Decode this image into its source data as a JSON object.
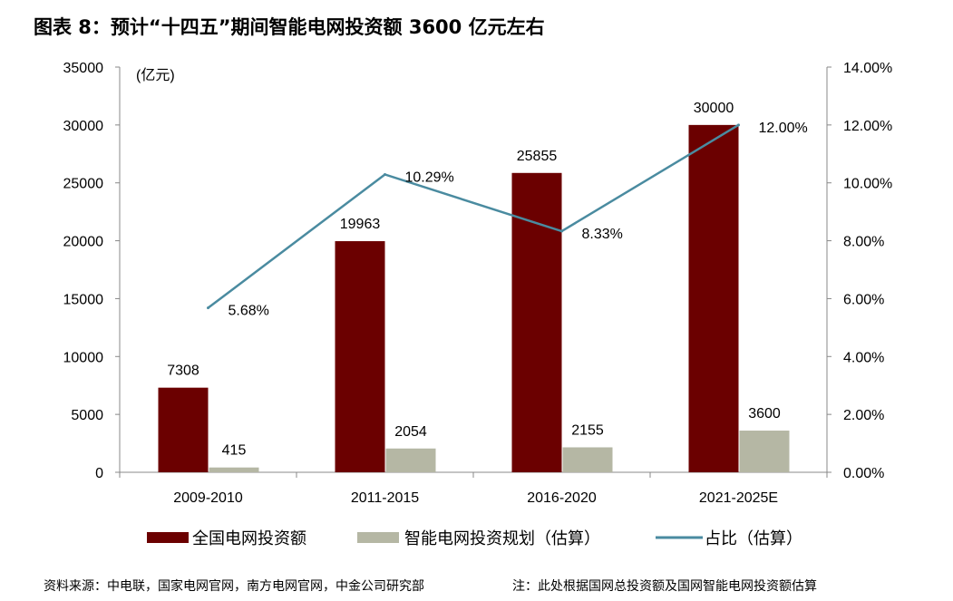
{
  "title": "图表 8：预计“十四五”期间智能电网投资额 3600 亿元左右",
  "footer": {
    "source": "资料来源：中电联，国家电网官网，南方电网官网，中金公司研究部",
    "note": "注：此处根据国网总投资额及国网智能电网投资额估算"
  },
  "chart_data": {
    "type": "bar+line",
    "categories": [
      "2009-2010",
      "2011-2015",
      "2016-2020",
      "2021-2025E"
    ],
    "ylabel": "(亿元)",
    "ylim": [
      0,
      35000
    ],
    "yticks": [
      "0",
      "5000",
      "10000",
      "15000",
      "20000",
      "25000",
      "30000",
      "35000"
    ],
    "y2lim": [
      0,
      14
    ],
    "y2ticks": [
      "0.00%",
      "2.00%",
      "4.00%",
      "6.00%",
      "8.00%",
      "10.00%",
      "12.00%",
      "14.00%"
    ],
    "grid": false,
    "legend": "bottom",
    "series": [
      {
        "name": "全国电网投资额",
        "type": "bar",
        "color": "#6b0000",
        "values": [
          7308,
          19963,
          25855,
          30000
        ],
        "labels": [
          "7308",
          "19963",
          "25855",
          "30000"
        ]
      },
      {
        "name": "智能电网投资规划（估算）",
        "type": "bar",
        "color": "#b5b7a4",
        "values": [
          415,
          2054,
          2155,
          3600
        ],
        "labels": [
          "415",
          "2054",
          "2155",
          "3600"
        ]
      },
      {
        "name": "占比（估算）",
        "type": "line",
        "axis": "right",
        "color": "#4a8ba0",
        "values": [
          5.68,
          10.29,
          8.33,
          12.0
        ],
        "labels": [
          "5.68%",
          "10.29%",
          "8.33%",
          "12.00%"
        ]
      }
    ]
  }
}
